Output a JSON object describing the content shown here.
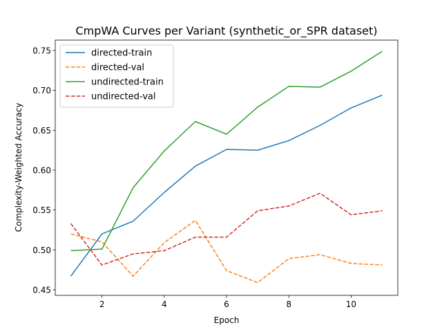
{
  "chart_data": {
    "type": "line",
    "title": "CmpWA Curves per Variant (synthetic_or_SPR dataset)",
    "xlabel": "Epoch",
    "ylabel": "Complexity-Weighted Accuracy",
    "xlim": [
      0.5,
      11.5
    ],
    "ylim": [
      0.443,
      0.763
    ],
    "xticks": [
      2,
      4,
      6,
      8,
      10
    ],
    "yticks": [
      0.45,
      0.5,
      0.55,
      0.6,
      0.65,
      0.7,
      0.75
    ],
    "ytick_labels": [
      "0.45",
      "0.50",
      "0.55",
      "0.60",
      "0.65",
      "0.70",
      "0.75"
    ],
    "grid": false,
    "legend_location": "top-left",
    "x": [
      1,
      2,
      3,
      4,
      5,
      6,
      7,
      8,
      9,
      10,
      11
    ],
    "series": [
      {
        "name": "directed-train",
        "color": "#1f77b4",
        "dash": "solid",
        "values": [
          0.467,
          0.52,
          0.536,
          0.572,
          0.605,
          0.626,
          0.625,
          0.637,
          0.656,
          0.678,
          0.694
        ]
      },
      {
        "name": "directed-val",
        "color": "#ff7f0e",
        "dash": "dashed",
        "values": [
          0.52,
          0.51,
          0.467,
          0.509,
          0.537,
          0.474,
          0.459,
          0.489,
          0.494,
          0.483,
          0.481
        ]
      },
      {
        "name": "undirected-train",
        "color": "#2ca02c",
        "dash": "solid",
        "values": [
          0.499,
          0.501,
          0.578,
          0.624,
          0.661,
          0.645,
          0.679,
          0.705,
          0.704,
          0.724,
          0.749
        ]
      },
      {
        "name": "undirected-val",
        "color": "#d62728",
        "dash": "dashed",
        "values": [
          0.533,
          0.481,
          0.495,
          0.499,
          0.516,
          0.516,
          0.549,
          0.555,
          0.571,
          0.544,
          0.549
        ]
      }
    ]
  }
}
